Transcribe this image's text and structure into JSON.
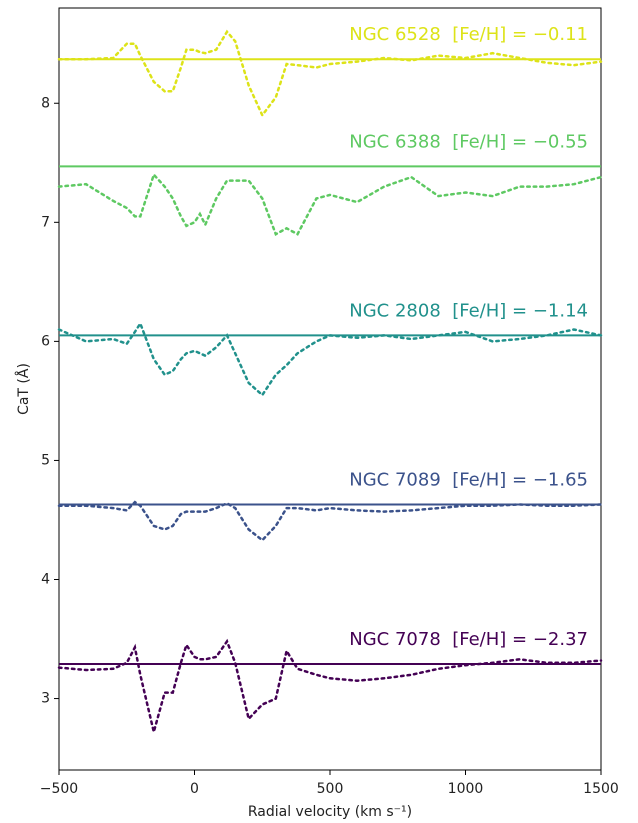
{
  "chart_data": {
    "type": "line",
    "xlabel": "Radial velocity (km s⁻¹)",
    "ylabel": "CaT (Å)",
    "xlim": [
      -500,
      1500
    ],
    "ylim": [
      2.4,
      8.8
    ],
    "xticks": [
      {
        "value": -500,
        "label": "−500"
      },
      0,
      500,
      1000,
      1500
    ],
    "yticks": [
      3,
      4,
      5,
      6,
      7,
      8
    ],
    "x": [
      -500,
      -400,
      -300,
      -250,
      -220,
      -200,
      -150,
      -110,
      -80,
      -50,
      -30,
      0,
      20,
      40,
      80,
      120,
      150,
      200,
      250,
      300,
      340,
      380,
      450,
      500,
      600,
      700,
      800,
      900,
      1000,
      1100,
      1200,
      1300,
      1400,
      1500
    ],
    "series": [
      {
        "name": "NGC 6528  [Fe/H] = −0.11",
        "color": "#dde318",
        "level": 8.37,
        "values": [
          8.37,
          8.37,
          8.38,
          8.5,
          8.5,
          8.4,
          8.18,
          8.1,
          8.1,
          8.3,
          8.45,
          8.45,
          8.43,
          8.42,
          8.45,
          8.6,
          8.52,
          8.15,
          7.9,
          8.05,
          8.33,
          8.32,
          8.3,
          8.33,
          8.35,
          8.38,
          8.36,
          8.4,
          8.38,
          8.42,
          8.38,
          8.34,
          8.32,
          8.35
        ]
      },
      {
        "name": "NGC 6388  [Fe/H] = −0.55",
        "color": "#5ec962",
        "level": 7.47,
        "values": [
          7.3,
          7.32,
          7.18,
          7.12,
          7.05,
          7.05,
          7.4,
          7.3,
          7.2,
          7.05,
          6.97,
          7.0,
          7.07,
          6.98,
          7.2,
          7.35,
          7.35,
          7.35,
          7.2,
          6.9,
          6.95,
          6.9,
          7.2,
          7.23,
          7.17,
          7.3,
          7.38,
          7.22,
          7.25,
          7.22,
          7.3,
          7.3,
          7.32,
          7.38
        ]
      },
      {
        "name": "NGC 2808  [Fe/H] = −1.14",
        "color": "#21918c",
        "level": 6.05,
        "values": [
          6.1,
          6.0,
          6.02,
          5.98,
          6.08,
          6.15,
          5.85,
          5.72,
          5.75,
          5.85,
          5.9,
          5.92,
          5.9,
          5.88,
          5.95,
          6.05,
          5.9,
          5.65,
          5.55,
          5.72,
          5.8,
          5.9,
          6.0,
          6.05,
          6.03,
          6.05,
          6.02,
          6.05,
          6.08,
          6.0,
          6.02,
          6.05,
          6.1,
          6.05
        ]
      },
      {
        "name": "NGC 7089  [Fe/H] = −1.65",
        "color": "#3b528b",
        "level": 4.63,
        "values": [
          4.62,
          4.62,
          4.6,
          4.58,
          4.65,
          4.62,
          4.45,
          4.42,
          4.45,
          4.55,
          4.57,
          4.57,
          4.57,
          4.57,
          4.6,
          4.64,
          4.6,
          4.42,
          4.33,
          4.45,
          4.6,
          4.6,
          4.58,
          4.6,
          4.58,
          4.57,
          4.58,
          4.6,
          4.62,
          4.62,
          4.63,
          4.62,
          4.62,
          4.63
        ]
      },
      {
        "name": "NGC 7078  [Fe/H] = −2.37",
        "color": "#440154",
        "level": 3.29,
        "values": [
          3.26,
          3.24,
          3.25,
          3.3,
          3.43,
          3.2,
          2.72,
          3.05,
          3.05,
          3.3,
          3.45,
          3.35,
          3.33,
          3.33,
          3.35,
          3.48,
          3.3,
          2.83,
          2.95,
          3.0,
          3.4,
          3.25,
          3.2,
          3.17,
          3.15,
          3.17,
          3.2,
          3.25,
          3.28,
          3.3,
          3.33,
          3.3,
          3.3,
          3.32
        ]
      }
    ]
  }
}
